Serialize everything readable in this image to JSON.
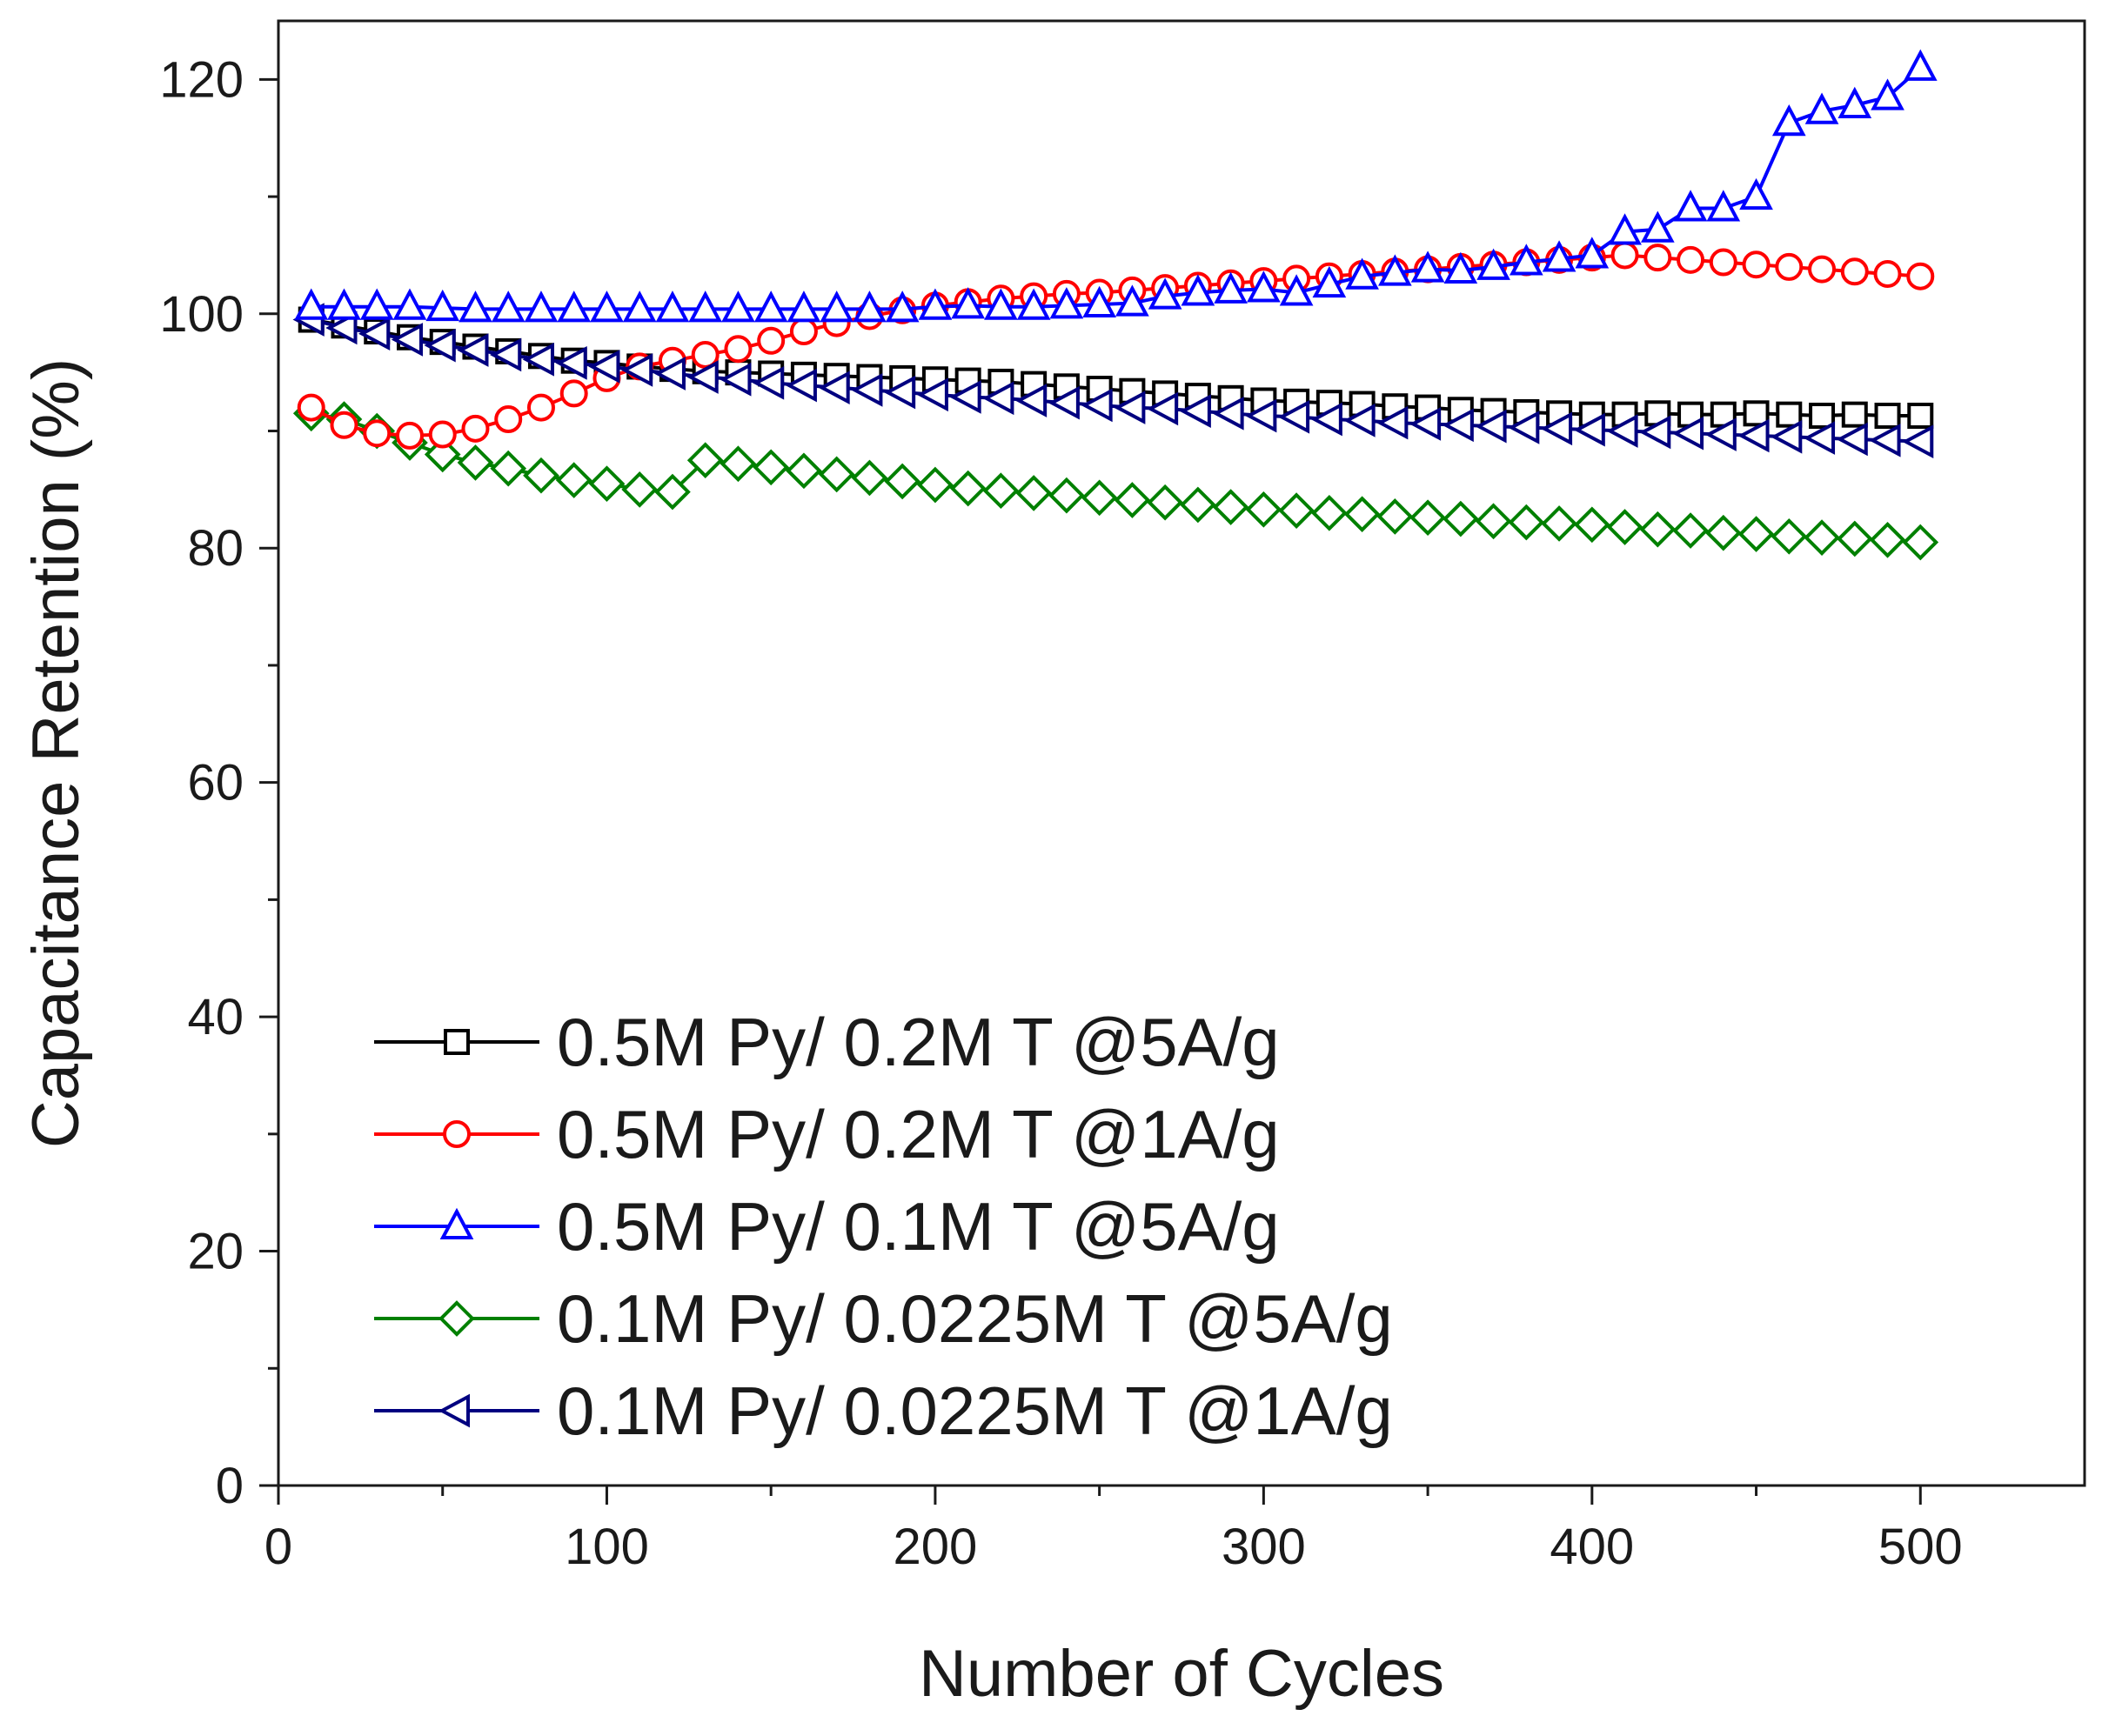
{
  "chart_data": {
    "type": "line",
    "title": "",
    "xlabel": "Number of Cycles",
    "ylabel": "Capacitance Retention (%)",
    "xlim": [
      0,
      550
    ],
    "ylim": [
      0,
      125
    ],
    "xticks": [
      0,
      100,
      200,
      300,
      400,
      500
    ],
    "yticks": [
      0,
      20,
      40,
      60,
      80,
      100,
      120
    ],
    "x_tick_labels": [
      "0",
      "100",
      "200",
      "300",
      "400",
      "500"
    ],
    "y_tick_labels": [
      "0",
      "20",
      "40",
      "60",
      "80",
      "100",
      "120"
    ],
    "x": [
      10,
      20,
      30,
      40,
      50,
      60,
      70,
      80,
      90,
      100,
      110,
      120,
      130,
      140,
      150,
      160,
      170,
      180,
      190,
      200,
      210,
      220,
      230,
      240,
      250,
      260,
      270,
      280,
      290,
      300,
      310,
      320,
      330,
      340,
      350,
      360,
      370,
      380,
      390,
      400,
      410,
      420,
      430,
      440,
      450,
      460,
      470,
      480,
      490,
      500
    ],
    "grid": false,
    "legend_position": "bottom-left",
    "series": [
      {
        "name": "0.5M Py/ 0.2M T @5A/g",
        "color": "#000000",
        "marker": "square",
        "values": [
          99.5,
          99.0,
          98.5,
          98.0,
          97.6,
          97.2,
          96.8,
          96.4,
          96.0,
          95.8,
          95.5,
          95.3,
          95.1,
          95.0,
          94.9,
          94.8,
          94.7,
          94.6,
          94.5,
          94.4,
          94.3,
          94.2,
          94.0,
          93.8,
          93.6,
          93.4,
          93.2,
          93.0,
          92.8,
          92.6,
          92.5,
          92.4,
          92.3,
          92.1,
          92.0,
          91.8,
          91.7,
          91.6,
          91.5,
          91.4,
          91.4,
          91.5,
          91.4,
          91.4,
          91.5,
          91.4,
          91.3,
          91.4,
          91.3,
          91.3
        ]
      },
      {
        "name": "0.5M Py/ 0.2M T @1A/g",
        "color": "#ff0000",
        "marker": "circle",
        "values": [
          92.0,
          90.5,
          89.8,
          89.6,
          89.7,
          90.2,
          91.0,
          92.0,
          93.2,
          94.5,
          95.5,
          96.0,
          96.5,
          97.0,
          97.7,
          98.5,
          99.2,
          99.8,
          100.3,
          100.7,
          101.0,
          101.3,
          101.5,
          101.7,
          101.8,
          102.0,
          102.2,
          102.4,
          102.6,
          102.8,
          103.0,
          103.2,
          103.4,
          103.6,
          103.8,
          104.0,
          104.2,
          104.4,
          104.6,
          104.8,
          105.0,
          104.8,
          104.6,
          104.4,
          104.2,
          104.0,
          103.8,
          103.6,
          103.4,
          103.2
        ]
      },
      {
        "name": "0.5M Py/ 0.1M T @5A/g",
        "color": "#0000ff",
        "marker": "triangle-up",
        "values": [
          100.6,
          100.6,
          100.6,
          100.6,
          100.5,
          100.4,
          100.4,
          100.4,
          100.4,
          100.4,
          100.4,
          100.4,
          100.4,
          100.4,
          100.4,
          100.4,
          100.4,
          100.4,
          100.4,
          100.6,
          100.7,
          100.6,
          100.6,
          100.7,
          100.8,
          100.9,
          101.5,
          101.8,
          102.0,
          102.1,
          101.8,
          102.5,
          103.2,
          103.5,
          103.8,
          103.7,
          104.0,
          104.4,
          104.7,
          105.0,
          107.0,
          107.2,
          109.0,
          109.0,
          110.0,
          116.3,
          117.3,
          117.8,
          118.5,
          121.0
        ]
      },
      {
        "name": "0.1M Py/ 0.0225M T @5A/g",
        "color": "#008000",
        "marker": "diamond",
        "values": [
          91.5,
          91.0,
          90.0,
          89.0,
          88.0,
          87.3,
          86.8,
          86.2,
          85.8,
          85.5,
          85.0,
          84.8,
          87.5,
          87.2,
          86.9,
          86.6,
          86.3,
          86.0,
          85.7,
          85.4,
          85.1,
          84.9,
          84.7,
          84.5,
          84.3,
          84.1,
          83.9,
          83.7,
          83.5,
          83.3,
          83.2,
          83.0,
          82.9,
          82.7,
          82.6,
          82.5,
          82.3,
          82.2,
          82.1,
          82.0,
          81.8,
          81.6,
          81.5,
          81.3,
          81.2,
          81.0,
          80.9,
          80.8,
          80.7,
          80.5
        ]
      },
      {
        "name": "0.1M Py/ 0.0225M T @1A/g",
        "color": "#000080",
        "marker": "triangle-left",
        "values": [
          99.5,
          98.8,
          98.3,
          97.8,
          97.3,
          96.9,
          96.5,
          96.1,
          95.8,
          95.5,
          95.2,
          94.9,
          94.6,
          94.4,
          94.1,
          93.9,
          93.7,
          93.5,
          93.3,
          93.1,
          92.9,
          92.8,
          92.6,
          92.4,
          92.2,
          92.0,
          91.9,
          91.7,
          91.5,
          91.3,
          91.2,
          91.0,
          90.9,
          90.7,
          90.6,
          90.5,
          90.4,
          90.3,
          90.2,
          90.1,
          90.0,
          89.9,
          89.8,
          89.7,
          89.6,
          89.5,
          89.4,
          89.3,
          89.2,
          89.1
        ]
      }
    ]
  }
}
